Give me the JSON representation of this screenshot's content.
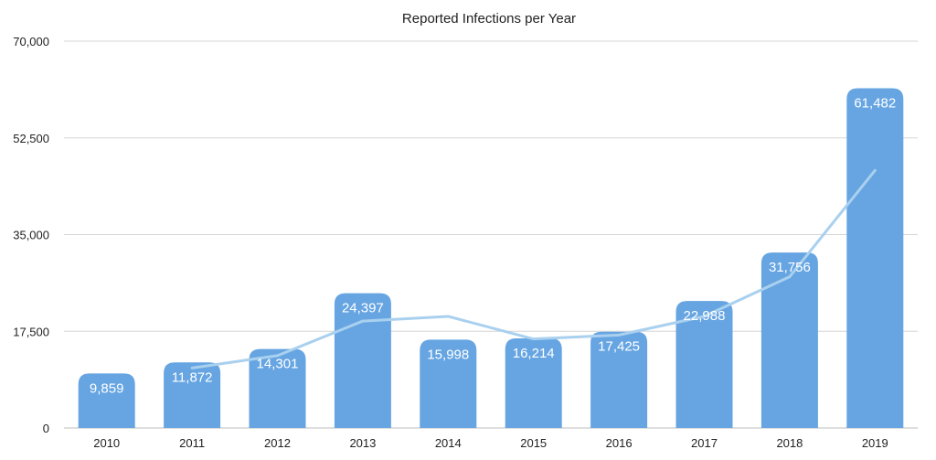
{
  "chart_data": {
    "type": "bar",
    "title": "Reported Infections per Year",
    "categories": [
      "2010",
      "2011",
      "2012",
      "2013",
      "2014",
      "2015",
      "2016",
      "2017",
      "2018",
      "2019"
    ],
    "series": [
      {
        "values": [
          9859,
          11872,
          14301,
          24397,
          15998,
          16214,
          17425,
          22988,
          31756,
          61482
        ]
      }
    ],
    "data_labels": [
      "9,859",
      "11,872",
      "14,301",
      "24,397",
      "15,998",
      "16,214",
      "17,425",
      "22,988",
      "31,756",
      "61,482"
    ],
    "trendline": {
      "type": "line",
      "x": [
        "2011",
        "2012",
        "2013",
        "2014",
        "2015",
        "2016",
        "2017",
        "2018",
        "2019"
      ],
      "values": [
        10866,
        13087,
        19349,
        20198,
        16106,
        16820,
        20207,
        27372,
        46619
      ]
    },
    "ylim": [
      0,
      70000
    ],
    "yticks": [
      0,
      17500,
      35000,
      52500,
      70000
    ],
    "ytick_labels": [
      "0",
      "17,500",
      "35,000",
      "52,500",
      "70,000"
    ],
    "xlabel": "",
    "ylabel": "",
    "grid": true,
    "colors": {
      "bar": "#66a5e2",
      "trendline": "#a9d0ee",
      "label": "#ffffff",
      "grid": "#d6d6d6"
    }
  }
}
